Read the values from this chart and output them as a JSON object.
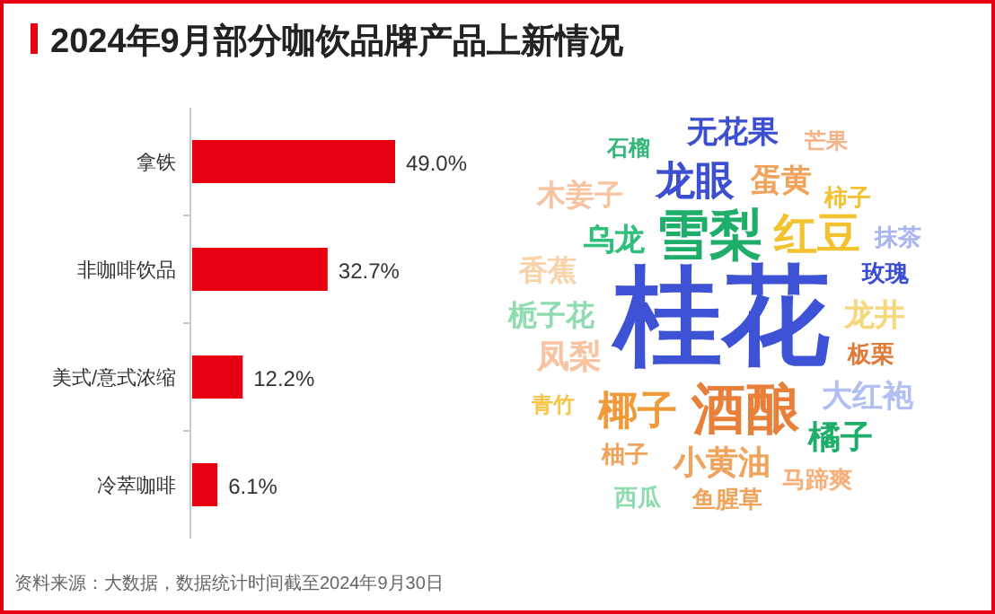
{
  "chart_data": [
    {
      "type": "bar",
      "orientation": "horizontal",
      "title": "2024年9月部分咖饮品牌产品上新情况",
      "categories": [
        "拿铁",
        "非咖啡饮品",
        "美式/意式浓缩",
        "冷萃咖啡"
      ],
      "values": [
        49.0,
        32.7,
        12.2,
        6.1
      ],
      "color": "#e60012",
      "value_labels": [
        "49.0%",
        "32.7%",
        "12.2%",
        "6.1%"
      ],
      "annotations": [
        "资料来源：大数据，数据统计时间截至2024年9月30日"
      ]
    },
    {
      "type": "other",
      "annotations": [
        "无花果",
        "芒果",
        "石榴",
        "龙眼",
        "蛋黄",
        "木姜子",
        "柿子",
        "雪梨",
        "红豆",
        "乌龙",
        "抹茶",
        "香蕉",
        "玫瑰",
        "桂花",
        "栀子花",
        "龙井",
        "凤梨",
        "板栗",
        "大红袍",
        "青竹",
        "椰子",
        "酒酿",
        "橘子",
        "柚子",
        "小黄油",
        "马蹄爽",
        "西瓜",
        "鱼腥草"
      ]
    }
  ]
}
